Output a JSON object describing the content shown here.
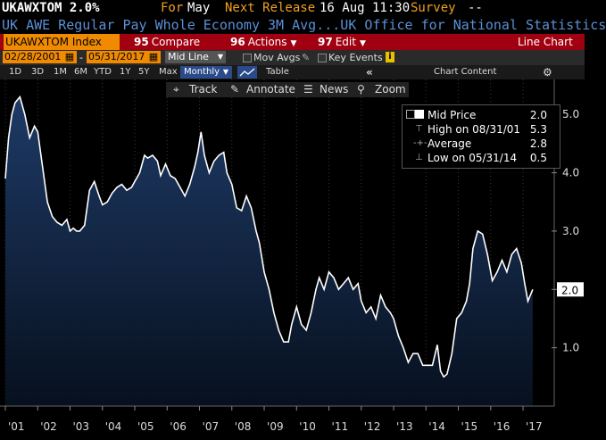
{
  "header": {
    "ticker_value": "UKAWXTOM 2.0%",
    "for_label": "For",
    "for_value": "May",
    "next_release_label": "Next Release",
    "next_release_value": "16 Aug 11:30",
    "survey_label": "Survey",
    "survey_value": "--",
    "description": "UK AWE Regular Pay Whole Economy 3M Avg...UK Office for National Statistics"
  },
  "toolbar": {
    "ticker": "UKAWXTOM Index",
    "compare_num": "95",
    "compare_label": "Compare",
    "actions_num": "96",
    "actions_label": "Actions",
    "edit_num": "97",
    "edit_label": "Edit",
    "view_label": "Line Chart"
  },
  "daterow": {
    "start_date": "02/28/2001",
    "end_date": "05/31/2017",
    "line_mode": "Mid Line",
    "mov_avgs": "Mov Avgs",
    "key_events": "Key Events",
    "chart_content": "Chart Content"
  },
  "periods": {
    "items": [
      "1D",
      "3D",
      "1M",
      "6M",
      "YTD",
      "1Y",
      "5Y",
      "Max"
    ],
    "frequency": "Monthly",
    "table_label": "Table"
  },
  "chart_tools": {
    "track": "Track",
    "annotate": "Annotate",
    "news": "News",
    "zoom": "Zoom"
  },
  "legend": {
    "mid_price_label": "Mid Price",
    "mid_price_value": "2.0",
    "high_label": "High on 08/31/01",
    "high_value": "5.3",
    "average_label": "Average",
    "average_value": "2.8",
    "low_label": "Low on 05/31/14",
    "low_value": "0.5"
  },
  "colors": {
    "accent_orange": "#f08a00",
    "toolbar_red": "#a00010",
    "description_blue": "#5a8fd6",
    "line": "#ffffff",
    "area_top": "#1e3a66",
    "area_bottom": "#07101e"
  },
  "chart_data": {
    "type": "area",
    "title": "",
    "xlabel": "",
    "ylabel": "",
    "x_tick_labels": [
      "'01",
      "'02",
      "'03",
      "'04",
      "'05",
      "'06",
      "'07",
      "'08",
      "'09",
      "'10",
      "'11",
      "'12",
      "'13",
      "'14",
      "'15",
      "'16",
      "'17"
    ],
    "y_tick_labels": [
      "1.0",
      "2.0",
      "3.0",
      "4.0",
      "5.0"
    ],
    "ylim": [
      0,
      5.6
    ],
    "last_value_label": "2.0",
    "series": [
      {
        "values": [
          [
            2001.0,
            3.9
          ],
          [
            2001.1,
            4.6
          ],
          [
            2001.2,
            5.0
          ],
          [
            2001.3,
            5.2
          ],
          [
            2001.45,
            5.3
          ],
          [
            2001.6,
            5.0
          ],
          [
            2001.75,
            4.6
          ],
          [
            2001.9,
            4.8
          ],
          [
            2002.0,
            4.7
          ],
          [
            2002.1,
            4.3
          ],
          [
            2002.2,
            3.9
          ],
          [
            2002.3,
            3.5
          ],
          [
            2002.45,
            3.25
          ],
          [
            2002.6,
            3.15
          ],
          [
            2002.75,
            3.1
          ],
          [
            2002.9,
            3.2
          ],
          [
            2003.0,
            3.0
          ],
          [
            2003.1,
            3.05
          ],
          [
            2003.2,
            3.0
          ],
          [
            2003.3,
            3.0
          ],
          [
            2003.45,
            3.1
          ],
          [
            2003.6,
            3.7
          ],
          [
            2003.75,
            3.85
          ],
          [
            2003.9,
            3.6
          ],
          [
            2004.0,
            3.45
          ],
          [
            2004.15,
            3.5
          ],
          [
            2004.3,
            3.65
          ],
          [
            2004.45,
            3.75
          ],
          [
            2004.6,
            3.8
          ],
          [
            2004.75,
            3.7
          ],
          [
            2004.9,
            3.75
          ],
          [
            2005.0,
            3.85
          ],
          [
            2005.15,
            4.0
          ],
          [
            2005.3,
            4.3
          ],
          [
            2005.4,
            4.25
          ],
          [
            2005.55,
            4.3
          ],
          [
            2005.7,
            4.2
          ],
          [
            2005.8,
            3.95
          ],
          [
            2005.95,
            4.15
          ],
          [
            2006.1,
            3.95
          ],
          [
            2006.25,
            3.9
          ],
          [
            2006.4,
            3.75
          ],
          [
            2006.55,
            3.6
          ],
          [
            2006.7,
            3.8
          ],
          [
            2006.85,
            4.1
          ],
          [
            2006.95,
            4.35
          ],
          [
            2007.05,
            4.7
          ],
          [
            2007.15,
            4.3
          ],
          [
            2007.3,
            4.0
          ],
          [
            2007.45,
            4.2
          ],
          [
            2007.6,
            4.3
          ],
          [
            2007.75,
            4.35
          ],
          [
            2007.85,
            4.0
          ],
          [
            2008.0,
            3.8
          ],
          [
            2008.15,
            3.4
          ],
          [
            2008.3,
            3.35
          ],
          [
            2008.45,
            3.6
          ],
          [
            2008.6,
            3.4
          ],
          [
            2008.75,
            3.0
          ],
          [
            2008.85,
            2.8
          ],
          [
            2009.0,
            2.3
          ],
          [
            2009.15,
            2.0
          ],
          [
            2009.3,
            1.6
          ],
          [
            2009.45,
            1.3
          ],
          [
            2009.6,
            1.1
          ],
          [
            2009.75,
            1.1
          ],
          [
            2009.85,
            1.4
          ],
          [
            2010.0,
            1.7
          ],
          [
            2010.15,
            1.4
          ],
          [
            2010.3,
            1.3
          ],
          [
            2010.45,
            1.6
          ],
          [
            2010.6,
            2.0
          ],
          [
            2010.7,
            2.2
          ],
          [
            2010.85,
            2.0
          ],
          [
            2011.0,
            2.3
          ],
          [
            2011.15,
            2.2
          ],
          [
            2011.3,
            2.0
          ],
          [
            2011.45,
            2.1
          ],
          [
            2011.6,
            2.2
          ],
          [
            2011.75,
            2.0
          ],
          [
            2011.9,
            2.1
          ],
          [
            2012.0,
            1.8
          ],
          [
            2012.15,
            1.6
          ],
          [
            2012.3,
            1.7
          ],
          [
            2012.45,
            1.5
          ],
          [
            2012.6,
            1.9
          ],
          [
            2012.75,
            1.7
          ],
          [
            2012.9,
            1.6
          ],
          [
            2013.0,
            1.5
          ],
          [
            2013.15,
            1.2
          ],
          [
            2013.3,
            1.0
          ],
          [
            2013.45,
            0.75
          ],
          [
            2013.6,
            0.9
          ],
          [
            2013.75,
            0.9
          ],
          [
            2013.9,
            0.7
          ],
          [
            2014.05,
            0.7
          ],
          [
            2014.2,
            0.7
          ],
          [
            2014.35,
            1.05
          ],
          [
            2014.45,
            0.6
          ],
          [
            2014.55,
            0.5
          ],
          [
            2014.65,
            0.55
          ],
          [
            2014.8,
            0.9
          ],
          [
            2014.95,
            1.5
          ],
          [
            2015.1,
            1.6
          ],
          [
            2015.25,
            1.8
          ],
          [
            2015.35,
            2.1
          ],
          [
            2015.45,
            2.7
          ],
          [
            2015.6,
            3.0
          ],
          [
            2015.75,
            2.95
          ],
          [
            2015.9,
            2.6
          ],
          [
            2016.05,
            2.15
          ],
          [
            2016.2,
            2.3
          ],
          [
            2016.35,
            2.5
          ],
          [
            2016.5,
            2.3
          ],
          [
            2016.65,
            2.6
          ],
          [
            2016.8,
            2.7
          ],
          [
            2016.95,
            2.45
          ],
          [
            2017.05,
            2.1
          ],
          [
            2017.15,
            1.8
          ],
          [
            2017.3,
            2.0
          ]
        ]
      }
    ]
  }
}
